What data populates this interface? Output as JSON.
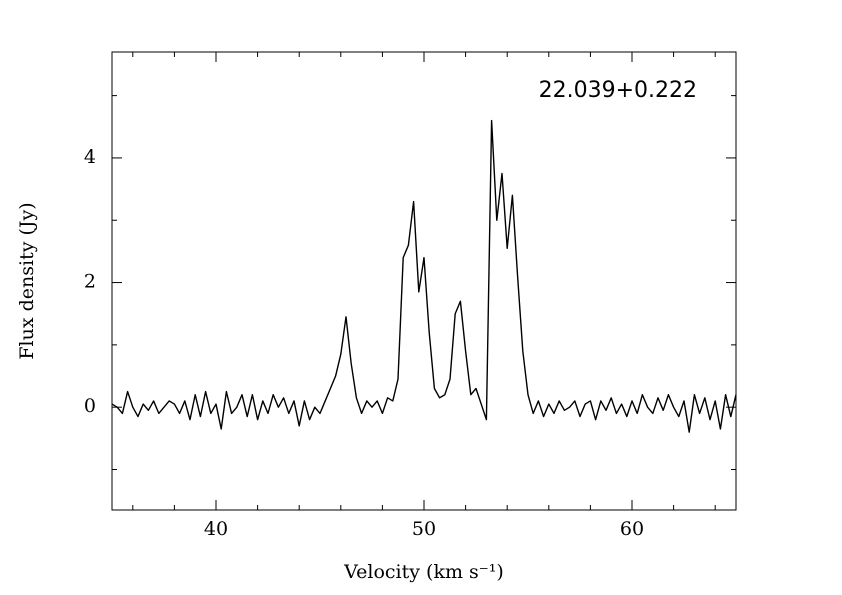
{
  "chart_data": {
    "type": "line",
    "annotation": "22.039+0.222",
    "xlabel": "Velocity (km s⁻¹)",
    "ylabel": "Flux density (Jy)",
    "xlim": [
      35,
      65
    ],
    "ylim": [
      -1.65,
      5.7
    ],
    "xticks": [
      40,
      50,
      60
    ],
    "yticks": [
      0,
      2,
      4
    ],
    "xminorticks": [
      36,
      38,
      42,
      44,
      46,
      48,
      52,
      54,
      56,
      58,
      62,
      64
    ],
    "yminorticks": [
      -1,
      1,
      3,
      5
    ],
    "x": [
      35.0,
      35.25,
      35.5,
      35.75,
      36.0,
      36.25,
      36.5,
      36.75,
      37.0,
      37.25,
      37.5,
      37.75,
      38.0,
      38.25,
      38.5,
      38.75,
      39.0,
      39.25,
      39.5,
      39.75,
      40.0,
      40.25,
      40.5,
      40.75,
      41.0,
      41.25,
      41.5,
      41.75,
      42.0,
      42.25,
      42.5,
      42.75,
      43.0,
      43.25,
      43.5,
      43.75,
      44.0,
      44.25,
      44.5,
      44.75,
      45.0,
      45.25,
      45.5,
      45.75,
      46.0,
      46.25,
      46.5,
      46.75,
      47.0,
      47.25,
      47.5,
      47.75,
      48.0,
      48.25,
      48.5,
      48.75,
      49.0,
      49.25,
      49.5,
      49.75,
      50.0,
      50.25,
      50.5,
      50.75,
      51.0,
      51.25,
      51.5,
      51.75,
      52.0,
      52.25,
      52.5,
      52.75,
      53.0,
      53.25,
      53.5,
      53.75,
      54.0,
      54.25,
      54.5,
      54.75,
      55.0,
      55.25,
      55.5,
      55.75,
      56.0,
      56.25,
      56.5,
      56.75,
      57.0,
      57.25,
      57.5,
      57.75,
      58.0,
      58.25,
      58.5,
      58.75,
      59.0,
      59.25,
      59.5,
      59.75,
      60.0,
      60.25,
      60.5,
      60.75,
      61.0,
      61.25,
      61.5,
      61.75,
      62.0,
      62.25,
      62.5,
      62.75,
      63.0,
      63.25,
      63.5,
      63.75,
      64.0,
      64.25,
      64.5,
      64.75,
      65.0
    ],
    "series": [
      {
        "color": "#000000",
        "values": [
          0.05,
          0.0,
          -0.1,
          0.25,
          0.0,
          -0.15,
          0.05,
          -0.05,
          0.1,
          -0.1,
          0.0,
          0.1,
          0.05,
          -0.1,
          0.1,
          -0.2,
          0.2,
          -0.15,
          0.25,
          -0.1,
          0.05,
          -0.35,
          0.25,
          -0.1,
          0.0,
          0.2,
          -0.15,
          0.2,
          -0.2,
          0.1,
          -0.1,
          0.2,
          0.0,
          0.15,
          -0.1,
          0.1,
          -0.3,
          0.1,
          -0.2,
          0.0,
          -0.1,
          0.1,
          0.3,
          0.5,
          0.85,
          1.45,
          0.7,
          0.15,
          -0.1,
          0.1,
          0.0,
          0.1,
          -0.1,
          0.15,
          0.1,
          0.45,
          2.4,
          2.6,
          3.3,
          1.85,
          2.4,
          1.2,
          0.3,
          0.15,
          0.2,
          0.45,
          1.5,
          1.7,
          0.9,
          0.2,
          0.3,
          0.05,
          -0.2,
          4.6,
          3.0,
          3.75,
          2.55,
          3.4,
          2.1,
          0.9,
          0.2,
          -0.1,
          0.1,
          -0.15,
          0.05,
          -0.1,
          0.1,
          -0.05,
          0.0,
          0.1,
          -0.15,
          0.05,
          0.1,
          -0.2,
          0.1,
          -0.05,
          0.15,
          -0.1,
          0.05,
          -0.15,
          0.1,
          -0.1,
          0.2,
          0.0,
          -0.1,
          0.15,
          -0.05,
          0.2,
          0.0,
          -0.15,
          0.1,
          -0.4,
          0.2,
          -0.1,
          0.15,
          -0.2,
          0.1,
          -0.35,
          0.2,
          -0.15,
          0.2
        ]
      }
    ]
  }
}
